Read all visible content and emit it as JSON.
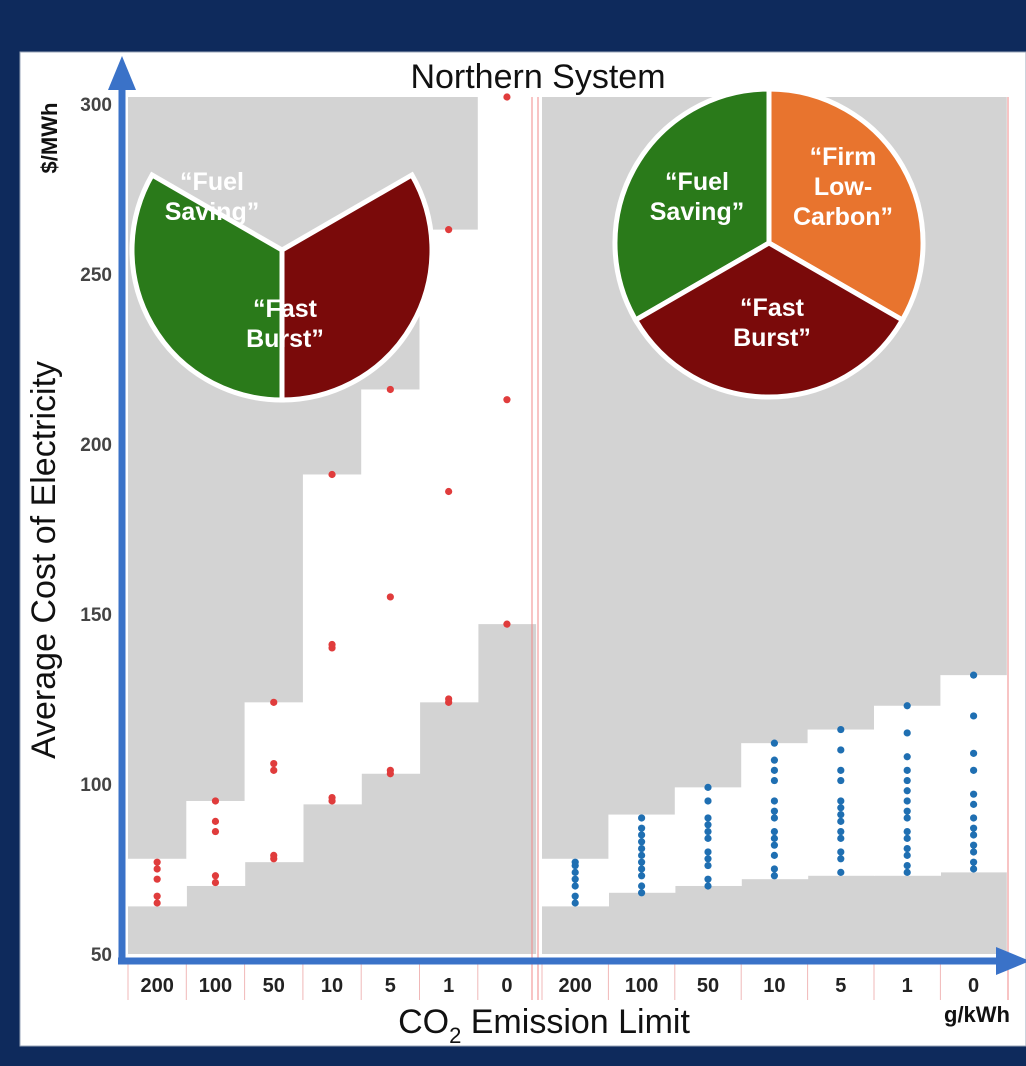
{
  "chart_data": {
    "type": "scatter",
    "title": "Northern System",
    "xlabel_main": "CO",
    "xlabel_sub": "2",
    "xlabel_rest": " Emission Limit",
    "x_unit": "g/kWh",
    "ylabel": "Average Cost of Electricity",
    "y_unit": "$/MWh",
    "categories": [
      "200",
      "100",
      "50",
      "10",
      "5",
      "1",
      "0"
    ],
    "y_ticks": [
      50,
      100,
      150,
      200,
      250,
      300
    ],
    "ylim": [
      50,
      302
    ],
    "colors": {
      "left_points": "#e03c3c",
      "right_points": "#1f6fb2",
      "infeasible_band": "#d3d3d3",
      "axis": "#3a72c8",
      "fuel_saving": "#2a7a1a",
      "fast_burst": "#7a0a0a",
      "firm_low_carbon": "#e8742e"
    },
    "panels": [
      {
        "name": "",
        "pie_labels": [
          "“Fuel Saving”",
          "“Fast Burst”"
        ],
        "range_min": [
          64,
          70,
          77,
          94,
          103,
          124,
          147
        ],
        "range_max": [
          78,
          95,
          124,
          191,
          216,
          263,
          302
        ],
        "points": [
          [
            65,
            67,
            72,
            75,
            77
          ],
          [
            71,
            73,
            86,
            89,
            95
          ],
          [
            78,
            79,
            104,
            106,
            124
          ],
          [
            95,
            96,
            140,
            141,
            191
          ],
          [
            103,
            104,
            155,
            216
          ],
          [
            124,
            125,
            186,
            263
          ],
          [
            147,
            213,
            302
          ]
        ]
      },
      {
        "name": "",
        "pie_labels": [
          "“Fuel Saving”",
          "“Firm Low-Carbon”",
          "“Fast Burst”"
        ],
        "range_min": [
          64,
          68,
          70,
          72,
          73,
          73,
          74
        ],
        "range_max": [
          78,
          91,
          99,
          112,
          116,
          123,
          132
        ],
        "points": [
          [
            65,
            67,
            70,
            72,
            74,
            76,
            77
          ],
          [
            68,
            70,
            73,
            75,
            77,
            79,
            81,
            83,
            85,
            87,
            90
          ],
          [
            70,
            72,
            76,
            78,
            80,
            84,
            86,
            88,
            90,
            95,
            99
          ],
          [
            73,
            75,
            79,
            82,
            84,
            86,
            90,
            92,
            95,
            101,
            104,
            107,
            112
          ],
          [
            74,
            78,
            80,
            84,
            86,
            89,
            91,
            93,
            95,
            101,
            104,
            110,
            116
          ],
          [
            74,
            76,
            79,
            81,
            84,
            86,
            90,
            92,
            95,
            98,
            101,
            104,
            108,
            115,
            123
          ],
          [
            75,
            77,
            80,
            82,
            85,
            87,
            90,
            94,
            97,
            104,
            109,
            120,
            132
          ]
        ]
      }
    ]
  }
}
